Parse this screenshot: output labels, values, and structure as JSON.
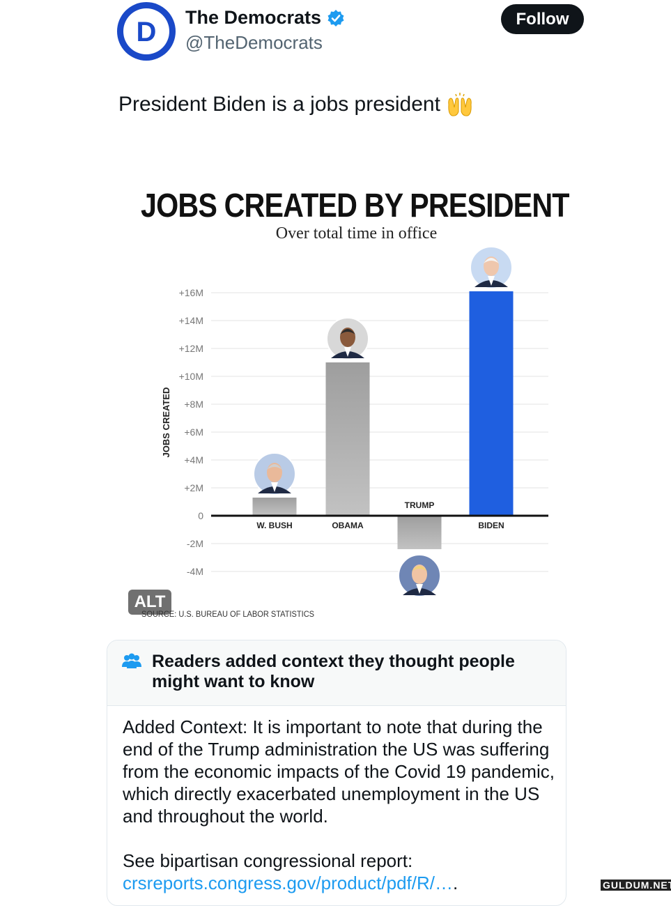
{
  "account": {
    "display_name": "The Democrats",
    "handle": "@TheDemocrats",
    "avatar_letter": "D",
    "follow_label": "Follow"
  },
  "tweet": {
    "text": "President Biden is a jobs president",
    "emoji": "raising-hands-icon"
  },
  "media": {
    "alt_label": "ALT"
  },
  "chart_data": {
    "type": "bar",
    "title": "JOBS CREATED BY PRESIDENT",
    "subtitle": "Over total time in office",
    "ylabel": "JOBS CREATED",
    "categories": [
      "W. BUSH",
      "OBAMA",
      "TRUMP",
      "BIDEN"
    ],
    "values": [
      1.3,
      11.0,
      -2.4,
      16.1
    ],
    "unit": "M",
    "ylim": [
      -4,
      16
    ],
    "yticks": [
      "+16M",
      "+14M",
      "+12M",
      "+10M",
      "+8M",
      "+6M",
      "+4M",
      "+2M",
      "0",
      "-2M",
      "-4M"
    ],
    "ytick_values": [
      16,
      14,
      12,
      10,
      8,
      6,
      4,
      2,
      0,
      -2,
      -4
    ],
    "colors": [
      "#a9a9a9",
      "#a9a9a9",
      "#a9a9a9",
      "#1f5fe0"
    ],
    "grid": true,
    "source": "SOURCE: U.S. BUREAU OF LABOR STATISTICS"
  },
  "context": {
    "heading": "Readers added context they thought people might want to know",
    "body": "Added Context: It is important to note that during the end of the Trump administration the US was suffering from the economic impacts of the Covid 19 pandemic, which directly exacerbated unemployment in the US and throughout the world.",
    "report_label": "See bipartisan congressional report:",
    "link_text": "crsreports.congress.gov/product/pdf/R/…",
    "link_suffix": "."
  },
  "watermark": "GULDUM.NET"
}
